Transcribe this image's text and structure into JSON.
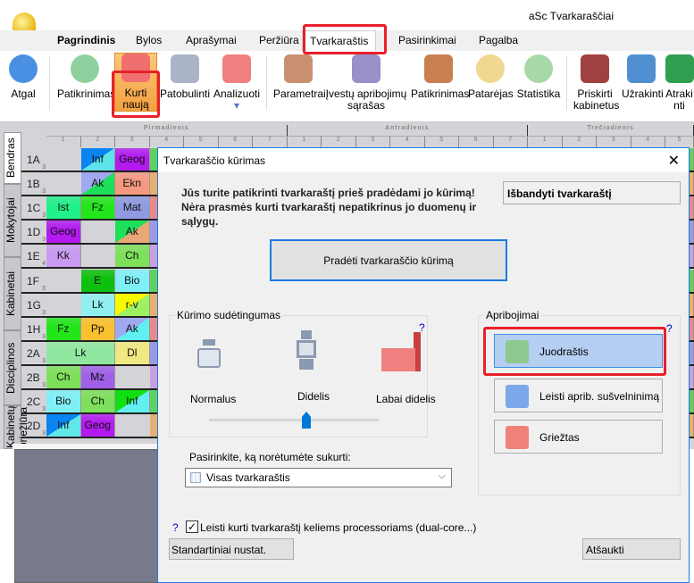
{
  "app": {
    "title": "aSc Tvarkaraščiai"
  },
  "menu_tabs": [
    "Pagrindinis",
    "Bylos",
    "Aprašymai",
    "Peržiūra",
    "Tvarkaraštis",
    "Pasirinkimai",
    "Pagalba"
  ],
  "active_tab": "Tvarkaraštis",
  "ribbon": [
    {
      "label": "Atgal",
      "icon": "back-arrow-icon",
      "color": "#4a90e2"
    },
    {
      "label": "Patikrinimas",
      "icon": "check-badge-icon",
      "color": "#8fd19e"
    },
    {
      "label": "Kurti naują",
      "icon": "siren-icon",
      "color": "#f07070",
      "active": true
    },
    {
      "label": "Patobulinti",
      "icon": "escalator-icon",
      "color": "#aab4c8"
    },
    {
      "label": "Analizuoti",
      "icon": "flask-icon",
      "color": "#f08080"
    },
    {
      "label": "Parametrai",
      "icon": "abacus-icon",
      "color": "#c89070"
    },
    {
      "label": "Įvestų apribojimų sąrašas",
      "icon": "grid-hash-icon",
      "color": "#9890c8"
    },
    {
      "label": "Patikrinimas",
      "icon": "gavel-icon",
      "color": "#c88050"
    },
    {
      "label": "Patarėjas",
      "icon": "einstein-icon",
      "color": "#f0d890"
    },
    {
      "label": "Statistika",
      "icon": "pie-chart-icon",
      "color": "#a8d8a8"
    },
    {
      "label": "Priskirti kabinetus",
      "icon": "door-icon",
      "color": "#a04040"
    },
    {
      "label": "Užrakinti",
      "icon": "lock-icon",
      "color": "#5090d0"
    },
    {
      "label": "Atrakinti",
      "icon": "unlock-icon",
      "color": "#30a050"
    }
  ],
  "side_tabs": [
    "Bendras",
    "Mokytojai",
    "Kabinetai",
    "Disciplinos",
    "Kabinetų priežiūra"
  ],
  "days": [
    "Pirmadienis",
    "Antradienis",
    "Trečiadienis"
  ],
  "periods": [
    "1",
    "2",
    "3",
    "4",
    "5",
    "6",
    "7"
  ],
  "rows": [
    {
      "name": "1A",
      "n": "3",
      "cells": [
        null,
        {
          "t": "Inf",
          "c": "#5ee3e8",
          "c2": "#0a84f0"
        },
        {
          "t": "Geog",
          "c": "#b21aef"
        }
      ]
    },
    {
      "name": "1B",
      "n": "3",
      "cells": [
        null,
        {
          "t": "Ak",
          "c": "#1de05a",
          "c2": "#a0a8f0"
        },
        {
          "t": "Ekn",
          "c": "#f59a80"
        }
      ]
    },
    {
      "name": "1C",
      "n": "3",
      "cells": [
        {
          "t": "Ist",
          "c": "#22f08a"
        },
        {
          "t": "Fz",
          "c": "#22e61a"
        },
        {
          "t": "Mat",
          "c": "#8f9ae0"
        }
      ]
    },
    {
      "name": "1D",
      "n": "3",
      "cells": [
        {
          "t": "Geog",
          "c": "#b21aef"
        },
        null,
        {
          "t": "Ak",
          "c": "#e8a878",
          "c2": "#1de05a"
        }
      ]
    },
    {
      "name": "1E",
      "n": "4",
      "cells": [
        {
          "t": "Kk",
          "c": "#c89af0"
        },
        null,
        {
          "t": "Ch",
          "c": "#7ee05a"
        }
      ]
    },
    {
      "name": "1F",
      "n": "3",
      "cells": [
        null,
        {
          "t": "E",
          "c": "#0ec00e"
        },
        {
          "t": "Bio",
          "c": "#80f0f8"
        }
      ]
    },
    {
      "name": "1G",
      "n": "3",
      "cells": [
        null,
        {
          "t": "Lk",
          "c": "#90f0f0"
        },
        {
          "t": "r-v",
          "c": "#9ef060",
          "c2": "#f8f800"
        }
      ]
    },
    {
      "name": "1H",
      "n": "3",
      "cells": [
        {
          "t": "Fz",
          "c": "#22e61a"
        },
        {
          "t": "Pp",
          "c": "#fbc02d"
        },
        {
          "t": "Ak",
          "c": "#60f0f0",
          "c2": "#a0a8f0"
        }
      ]
    },
    {
      "name": "2A",
      "n": "3",
      "cells": [
        {
          "t": "Lk",
          "c": "#90e8a0",
          "span": 2
        },
        {
          "t": "Dl",
          "c": "#f0e880"
        }
      ]
    },
    {
      "name": "2B",
      "n": "3",
      "cells": [
        {
          "t": "Ch",
          "c": "#7ee05a"
        },
        {
          "t": "Mz",
          "c": "#a060e8"
        },
        null
      ]
    },
    {
      "name": "2C",
      "n": "3",
      "cells": [
        {
          "t": "Bio",
          "c": "#80f0f8"
        },
        {
          "t": "Ch",
          "c": "#7ee05a"
        },
        {
          "t": "Inf",
          "c": "#60f0f0",
          "c2": "#10e010"
        }
      ]
    },
    {
      "name": "2D",
      "n": "3",
      "cells": [
        {
          "t": "Inf",
          "c": "#60e8e8",
          "c2": "#0a84f0"
        },
        {
          "t": "Geog",
          "c": "#b21aef"
        },
        null
      ]
    }
  ],
  "dialog": {
    "title": "Tvarkaraščio kūrimas",
    "warning": "Jūs turite patikrinti tvarkaraštį prieš pradėdami jo kūrimą! Nėra prasmės kurti tvarkaraštį nepatikrinus jo duomenų ir sąlygų.",
    "test_button": "Išbandyti tvarkaraštį",
    "start_button": "Pradėti tvarkaraščio kūrimą",
    "complexity": {
      "legend": "Kūrimo sudėtingumas",
      "help": "?",
      "options": [
        "Normalus",
        "Didelis",
        "Labai didelis"
      ],
      "selected": "Didelis"
    },
    "constraints": {
      "legend": "Apribojimai",
      "help": "?",
      "options": [
        {
          "label": "Juodraštis",
          "color": "#8fc98f"
        },
        {
          "label": "Leisti aprib. sušvelninimą",
          "color": "#7aa8e8"
        },
        {
          "label": "Griežtas",
          "color": "#f08078"
        }
      ],
      "selected": "Juodraštis"
    },
    "select_label": "Pasirinkite, ką norėtumėte sukurti:",
    "select_value": "Visas tvarkaraštis",
    "help": "?",
    "checkbox_label": "Leisti kurti tvarkaraštį keliems processoriams (dual-core...)",
    "checkbox_checked": true,
    "defaults_button": "Standartiniai nustat.",
    "cancel_button": "Atšaukti",
    "close": "✕"
  }
}
